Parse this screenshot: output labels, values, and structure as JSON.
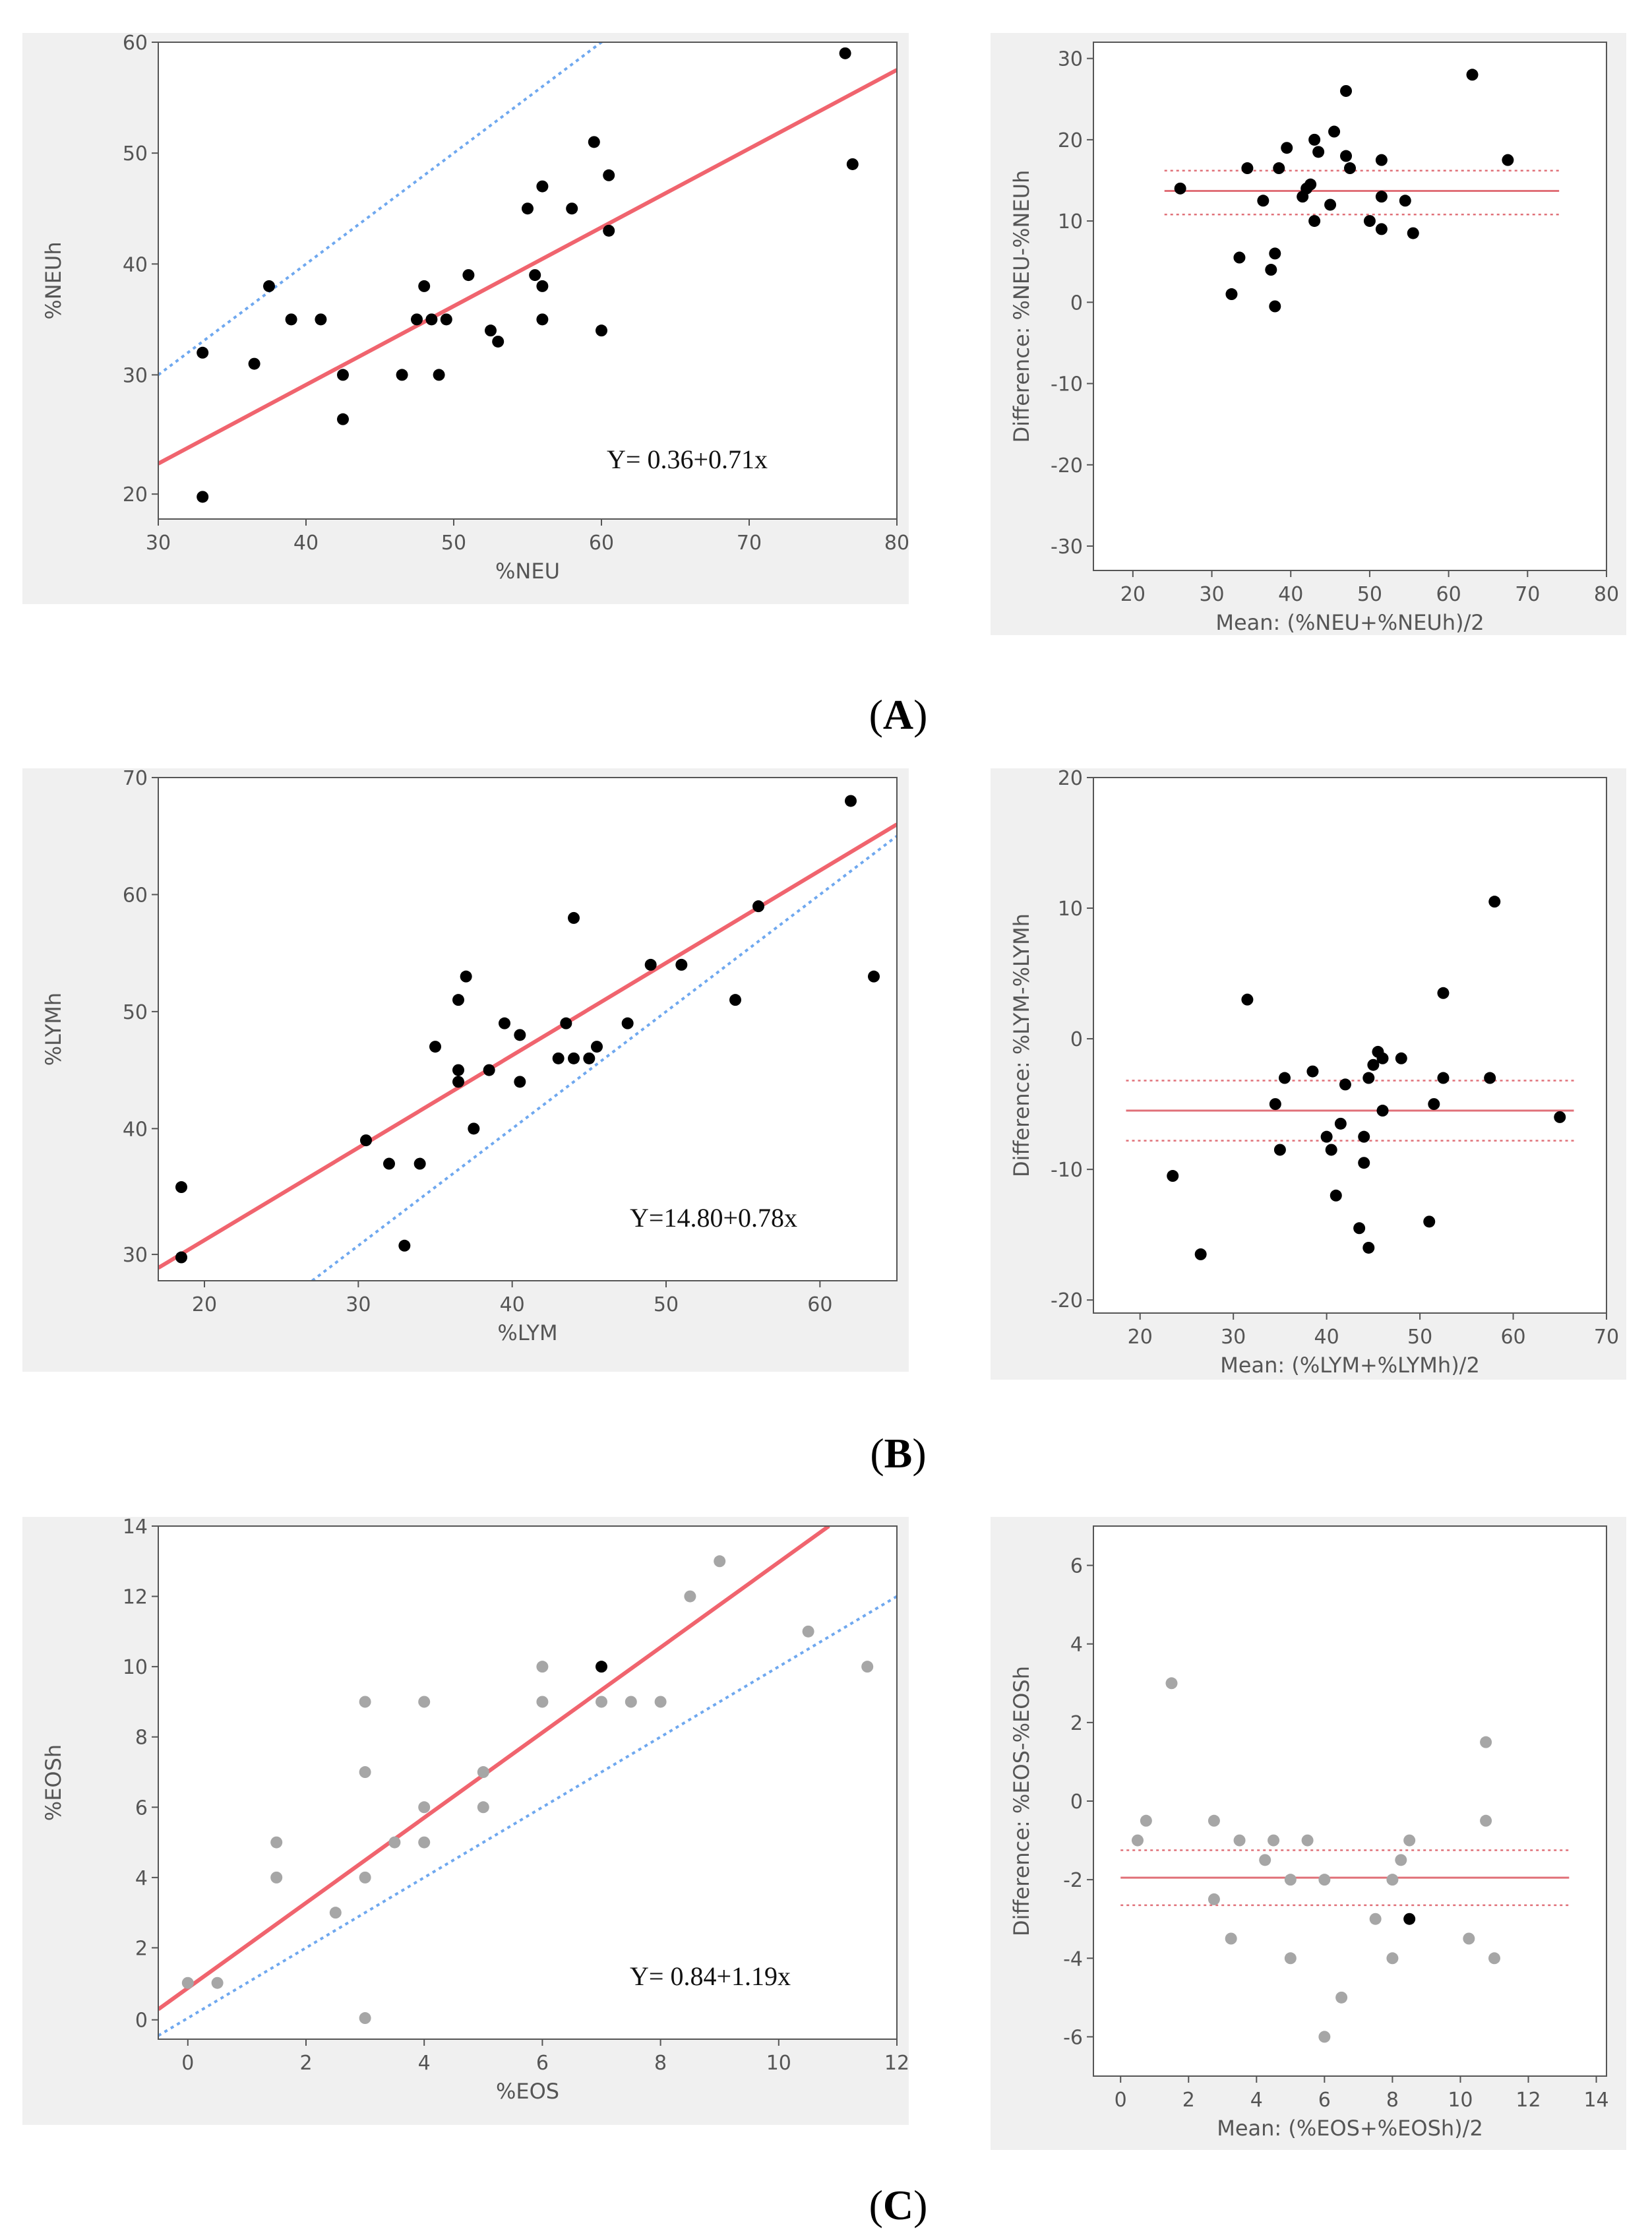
{
  "panel_labels": [
    {
      "open": "(",
      "letter": "A",
      "close": ")"
    },
    {
      "open": "(",
      "letter": "B",
      "close": ")"
    },
    {
      "open": "(",
      "letter": "C",
      "close": ")"
    }
  ],
  "colors": {
    "regression": "#f0646e",
    "identity": "#6fa8ef",
    "point_dark": "#000000",
    "point_gray": "#a6a6a6",
    "mean_line": "#e07078",
    "frame_bg": "#f0f0f0",
    "plot_bg": "#ffffff",
    "axis": "#555555"
  },
  "chart_data": [
    {
      "id": "neu-scatter",
      "type": "scatter",
      "xlabel": "%NEU",
      "ylabel": "%NEUh",
      "xlim": [
        30,
        80
      ],
      "ylim": [
        17,
        60
      ],
      "xticks": [
        "30",
        "40",
        "50",
        "60",
        "70",
        "80"
      ],
      "yticks": [
        "20",
        "30",
        "40",
        "50",
        "60"
      ],
      "equation": "Y= 0.36+0.71x",
      "regression_line": {
        "x": [
          30,
          80
        ],
        "y": [
          22,
          57.5
        ]
      },
      "identity_line": {
        "x": [
          30,
          61
        ],
        "y": [
          30,
          61
        ]
      },
      "points": [
        {
          "x": 33,
          "y": 32
        },
        {
          "x": 33,
          "y": 19
        },
        {
          "x": 36.5,
          "y": 31
        },
        {
          "x": 37.5,
          "y": 38
        },
        {
          "x": 39,
          "y": 35
        },
        {
          "x": 41,
          "y": 35
        },
        {
          "x": 42.5,
          "y": 30
        },
        {
          "x": 42.5,
          "y": 26
        },
        {
          "x": 46.5,
          "y": 30
        },
        {
          "x": 47.5,
          "y": 35
        },
        {
          "x": 48,
          "y": 38
        },
        {
          "x": 48.5,
          "y": 35
        },
        {
          "x": 49,
          "y": 30
        },
        {
          "x": 49.5,
          "y": 35
        },
        {
          "x": 51,
          "y": 39
        },
        {
          "x": 52.5,
          "y": 34
        },
        {
          "x": 53,
          "y": 33
        },
        {
          "x": 55,
          "y": 45
        },
        {
          "x": 55.5,
          "y": 39
        },
        {
          "x": 56,
          "y": 47
        },
        {
          "x": 56,
          "y": 38
        },
        {
          "x": 56,
          "y": 35
        },
        {
          "x": 58,
          "y": 45
        },
        {
          "x": 59.5,
          "y": 51
        },
        {
          "x": 60,
          "y": 34
        },
        {
          "x": 60.5,
          "y": 48
        },
        {
          "x": 60.5,
          "y": 43
        },
        {
          "x": 76.5,
          "y": 59
        },
        {
          "x": 77,
          "y": 49
        }
      ]
    },
    {
      "id": "neu-bland-altman",
      "type": "scatter",
      "xlabel": "Mean: (%NEU+%NEUh)/2",
      "ylabel": "Difference: %NEU-%NEUh",
      "xlim": [
        15,
        80
      ],
      "ylim": [
        -33,
        32
      ],
      "xticks": [
        "20",
        "30",
        "40",
        "50",
        "60",
        "70",
        "80"
      ],
      "yticks": [
        "-30",
        "-20",
        "-10",
        "0",
        "10",
        "20",
        "30"
      ],
      "mean_difference": 13.7,
      "limits_of_agreement": [
        10.8,
        16.2
      ],
      "line_x_range": [
        24,
        74
      ],
      "points": [
        {
          "x": 26,
          "y": 14
        },
        {
          "x": 32.5,
          "y": 1
        },
        {
          "x": 33.5,
          "y": 5.5
        },
        {
          "x": 34.5,
          "y": 16.5
        },
        {
          "x": 36.5,
          "y": 12.5
        },
        {
          "x": 37.5,
          "y": 4
        },
        {
          "x": 38,
          "y": 6
        },
        {
          "x": 38,
          "y": -0.5
        },
        {
          "x": 38.5,
          "y": 16.5
        },
        {
          "x": 39.5,
          "y": 19
        },
        {
          "x": 41.5,
          "y": 13
        },
        {
          "x": 42,
          "y": 14
        },
        {
          "x": 42.5,
          "y": 14.5
        },
        {
          "x": 43,
          "y": 20
        },
        {
          "x": 43,
          "y": 10
        },
        {
          "x": 43.5,
          "y": 18.5
        },
        {
          "x": 45,
          "y": 12
        },
        {
          "x": 45.5,
          "y": 21
        },
        {
          "x": 47,
          "y": 26
        },
        {
          "x": 47,
          "y": 18
        },
        {
          "x": 47.5,
          "y": 16.5
        },
        {
          "x": 50,
          "y": 10
        },
        {
          "x": 51.5,
          "y": 17.5
        },
        {
          "x": 51.5,
          "y": 13
        },
        {
          "x": 51.5,
          "y": 9
        },
        {
          "x": 54.5,
          "y": 12.5
        },
        {
          "x": 55.5,
          "y": 8.5
        },
        {
          "x": 63,
          "y": 28
        },
        {
          "x": 67.5,
          "y": 17.5
        }
      ]
    },
    {
      "id": "lym-scatter",
      "type": "scatter",
      "xlabel": "%LYM",
      "ylabel": "%LYMh",
      "xlim": [
        17,
        65
      ],
      "ylim": [
        27,
        70
      ],
      "xticks": [
        "20",
        "30",
        "40",
        "50",
        "60"
      ],
      "yticks": [
        "30",
        "40",
        "50",
        "60",
        "70"
      ],
      "equation": "Y=14.80+0.78x",
      "regression_line": {
        "x": [
          17,
          65
        ],
        "y": [
          28.1,
          66
        ]
      },
      "identity_line": {
        "x": [
          27,
          65
        ],
        "y": [
          27,
          65
        ]
      },
      "points": [
        {
          "x": 18.5,
          "y": 35
        },
        {
          "x": 18.5,
          "y": 29
        },
        {
          "x": 30.5,
          "y": 39
        },
        {
          "x": 32,
          "y": 37
        },
        {
          "x": 33,
          "y": 30
        },
        {
          "x": 34,
          "y": 37
        },
        {
          "x": 35,
          "y": 47
        },
        {
          "x": 36.5,
          "y": 51
        },
        {
          "x": 36.5,
          "y": 45
        },
        {
          "x": 36.5,
          "y": 44
        },
        {
          "x": 37,
          "y": 53
        },
        {
          "x": 37.5,
          "y": 40
        },
        {
          "x": 38.5,
          "y": 45
        },
        {
          "x": 39.5,
          "y": 49
        },
        {
          "x": 40.5,
          "y": 48
        },
        {
          "x": 40.5,
          "y": 44
        },
        {
          "x": 43,
          "y": 46
        },
        {
          "x": 43.5,
          "y": 49
        },
        {
          "x": 44,
          "y": 58
        },
        {
          "x": 44,
          "y": 46
        },
        {
          "x": 45,
          "y": 46
        },
        {
          "x": 45.5,
          "y": 47
        },
        {
          "x": 47.5,
          "y": 49
        },
        {
          "x": 49,
          "y": 54
        },
        {
          "x": 51,
          "y": 54
        },
        {
          "x": 54.5,
          "y": 51
        },
        {
          "x": 56,
          "y": 59
        },
        {
          "x": 62,
          "y": 68
        },
        {
          "x": 63.5,
          "y": 53
        }
      ]
    },
    {
      "id": "lym-bland-altman",
      "type": "scatter",
      "xlabel": "Mean: (%LYM+%LYMh)/2",
      "ylabel": "Difference: %LYM-%LYMh",
      "xlim": [
        15,
        70
      ],
      "ylim": [
        -21,
        20
      ],
      "xticks": [
        "20",
        "30",
        "40",
        "50",
        "60",
        "70"
      ],
      "yticks": [
        "-20",
        "-10",
        "0",
        "10",
        "20"
      ],
      "mean_difference": -5.5,
      "limits_of_agreement": [
        -3.2,
        -7.8
      ],
      "line_x_range": [
        18.5,
        66.5
      ],
      "points": [
        {
          "x": 23.5,
          "y": -10.5
        },
        {
          "x": 26.5,
          "y": -16.5
        },
        {
          "x": 31.5,
          "y": 3
        },
        {
          "x": 34.5,
          "y": -5
        },
        {
          "x": 35,
          "y": -8.5
        },
        {
          "x": 35.5,
          "y": -3
        },
        {
          "x": 38.5,
          "y": -2.5
        },
        {
          "x": 40,
          "y": -7.5
        },
        {
          "x": 40.5,
          "y": -8.5
        },
        {
          "x": 41,
          "y": -12
        },
        {
          "x": 41.5,
          "y": -6.5
        },
        {
          "x": 42,
          "y": -3.5
        },
        {
          "x": 43.5,
          "y": -14.5
        },
        {
          "x": 44,
          "y": -9.5
        },
        {
          "x": 44,
          "y": -7.5
        },
        {
          "x": 44.5,
          "y": -3
        },
        {
          "x": 44.5,
          "y": -16
        },
        {
          "x": 45,
          "y": -2
        },
        {
          "x": 45.5,
          "y": -1
        },
        {
          "x": 46,
          "y": -1.5
        },
        {
          "x": 46,
          "y": -5.5
        },
        {
          "x": 48,
          "y": -1.5
        },
        {
          "x": 51,
          "y": -14
        },
        {
          "x": 51.5,
          "y": -5
        },
        {
          "x": 52.5,
          "y": -3
        },
        {
          "x": 52.5,
          "y": 3.5
        },
        {
          "x": 57.5,
          "y": -3
        },
        {
          "x": 58,
          "y": 10.5
        },
        {
          "x": 65,
          "y": -6
        }
      ]
    },
    {
      "id": "eos-scatter",
      "type": "scatter",
      "xlabel": "%EOS",
      "ylabel": "%EOSh",
      "xlim": [
        -0.5,
        12
      ],
      "ylim": [
        -0.6,
        14
      ],
      "xticks": [
        "0",
        "2",
        "4",
        "6",
        "8",
        "10",
        "12"
      ],
      "yticks": [
        "0",
        "2",
        "4",
        "6",
        "8",
        "10",
        "12",
        "14"
      ],
      "equation": "Y= 0.84+1.19x",
      "regression_line": {
        "x": [
          -0.5,
          10.85
        ],
        "y": [
          0.25,
          14
        ]
      },
      "identity_line": {
        "x": [
          -0.5,
          12
        ],
        "y": [
          -0.5,
          12
        ]
      },
      "points": [
        {
          "x": 0,
          "y": 1,
          "dark": false
        },
        {
          "x": 0.5,
          "y": 1,
          "dark": false
        },
        {
          "x": 1.5,
          "y": 5,
          "dark": false
        },
        {
          "x": 1.5,
          "y": 4,
          "dark": false
        },
        {
          "x": 2.5,
          "y": 3,
          "dark": false
        },
        {
          "x": 3,
          "y": 9,
          "dark": false
        },
        {
          "x": 3,
          "y": 7,
          "dark": false
        },
        {
          "x": 3,
          "y": 4,
          "dark": false
        },
        {
          "x": 3,
          "y": 0,
          "dark": false
        },
        {
          "x": 3.5,
          "y": 5,
          "dark": false
        },
        {
          "x": 4,
          "y": 9,
          "dark": false
        },
        {
          "x": 4,
          "y": 6,
          "dark": false
        },
        {
          "x": 4,
          "y": 5,
          "dark": false
        },
        {
          "x": 5,
          "y": 7,
          "dark": false
        },
        {
          "x": 5,
          "y": 6,
          "dark": false
        },
        {
          "x": 6,
          "y": 10,
          "dark": false
        },
        {
          "x": 6,
          "y": 9,
          "dark": false
        },
        {
          "x": 7,
          "y": 10,
          "dark": true
        },
        {
          "x": 7,
          "y": 9,
          "dark": false
        },
        {
          "x": 7.5,
          "y": 9,
          "dark": false
        },
        {
          "x": 8,
          "y": 9,
          "dark": false
        },
        {
          "x": 8.5,
          "y": 12,
          "dark": false
        },
        {
          "x": 9,
          "y": 13,
          "dark": false
        },
        {
          "x": 10.5,
          "y": 11,
          "dark": false
        },
        {
          "x": 11.5,
          "y": 10,
          "dark": false
        }
      ]
    },
    {
      "id": "eos-bland-altman",
      "type": "scatter",
      "xlabel": "Mean: (%EOS+%EOSh)/2",
      "ylabel": "Difference: %EOS-%EOSh",
      "xlim": [
        -0.8,
        14.3
      ],
      "ylim": [
        -7,
        7
      ],
      "xticks": [
        "0",
        "2",
        "4",
        "6",
        "8",
        "10",
        "12",
        "14"
      ],
      "yticks": [
        "-6",
        "-4",
        "-2",
        "0",
        "2",
        "4",
        "6"
      ],
      "mean_difference": -1.95,
      "limits_of_agreement": [
        -1.25,
        -2.65
      ],
      "line_x_range": [
        0,
        13.2
      ],
      "points": [
        {
          "x": 0.5,
          "y": -1,
          "dark": false
        },
        {
          "x": 0.75,
          "y": -0.5,
          "dark": false
        },
        {
          "x": 1.5,
          "y": 3,
          "dark": false
        },
        {
          "x": 2.75,
          "y": -0.5,
          "dark": false
        },
        {
          "x": 2.75,
          "y": -2.5,
          "dark": false
        },
        {
          "x": 3.25,
          "y": -3.5,
          "dark": false
        },
        {
          "x": 3.5,
          "y": -1,
          "dark": false
        },
        {
          "x": 4.25,
          "y": -1.5,
          "dark": false
        },
        {
          "x": 4.5,
          "y": -1,
          "dark": false
        },
        {
          "x": 5,
          "y": -2,
          "dark": false
        },
        {
          "x": 5,
          "y": -4,
          "dark": false
        },
        {
          "x": 5.5,
          "y": -1,
          "dark": false
        },
        {
          "x": 6,
          "y": -2,
          "dark": false
        },
        {
          "x": 6,
          "y": -6,
          "dark": false
        },
        {
          "x": 6.5,
          "y": -5,
          "dark": false
        },
        {
          "x": 7.5,
          "y": -3,
          "dark": false
        },
        {
          "x": 8,
          "y": -2,
          "dark": false
        },
        {
          "x": 8,
          "y": -4,
          "dark": false
        },
        {
          "x": 8.25,
          "y": -1.5,
          "dark": false
        },
        {
          "x": 8.5,
          "y": -1,
          "dark": false
        },
        {
          "x": 8.5,
          "y": -3,
          "dark": true
        },
        {
          "x": 10.25,
          "y": -3.5,
          "dark": false
        },
        {
          "x": 10.75,
          "y": -0.5,
          "dark": false
        },
        {
          "x": 10.75,
          "y": 1.5,
          "dark": false
        },
        {
          "x": 11,
          "y": -4,
          "dark": false
        }
      ]
    }
  ]
}
